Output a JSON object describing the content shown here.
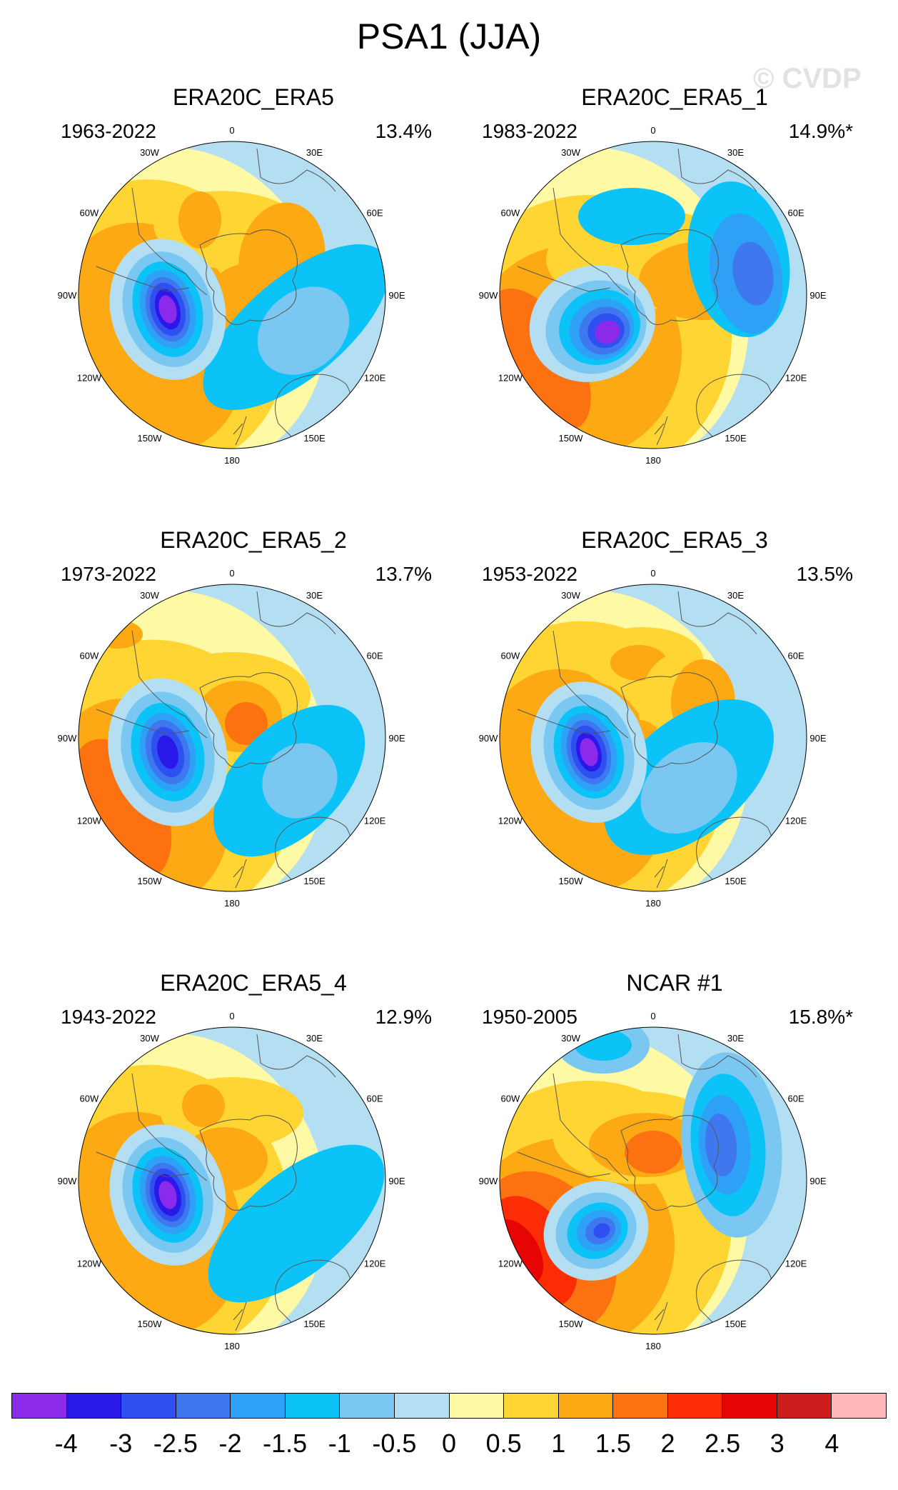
{
  "title": "PSA1 (JJA)",
  "watermark": "© CVDP",
  "lon_labels": [
    "0",
    "30E",
    "60E",
    "90E",
    "120E",
    "150E",
    "180",
    "150W",
    "120W",
    "90W",
    "60W",
    "30W"
  ],
  "colors": {
    "land_outline": "#555555",
    "circle_outline": "#000000"
  },
  "colorbar": {
    "colors": [
      "#8b2ae8",
      "#2a18e8",
      "#2e50f0",
      "#3f78ee",
      "#2ea1f6",
      "#0cc3f8",
      "#7ac8f2",
      "#b4def2",
      "#fef9a4",
      "#fed532",
      "#fda913",
      "#fc7210",
      "#fc2d05",
      "#e60404",
      "#cd1e1e",
      "#feb6b8"
    ],
    "labels": [
      "-4",
      "-3",
      "-2.5",
      "-2",
      "-1.5",
      "-1",
      "-0.5",
      "0",
      "0.5",
      "1",
      "1.5",
      "2",
      "2.5",
      "3",
      "4"
    ]
  },
  "panels": [
    {
      "title": "ERA20C_ERA5",
      "years": "1963-2022",
      "pct": "13.4%"
    },
    {
      "title": "ERA20C_ERA5_1",
      "years": "1983-2022",
      "pct": "14.9%*"
    },
    {
      "title": "ERA20C_ERA5_2",
      "years": "1973-2022",
      "pct": "13.7%"
    },
    {
      "title": "ERA20C_ERA5_3",
      "years": "1953-2022",
      "pct": "13.5%"
    },
    {
      "title": "ERA20C_ERA5_4",
      "years": "1943-2022",
      "pct": "12.9%"
    },
    {
      "title": "NCAR #1",
      "years": "1950-2005",
      "pct": "15.8%*"
    }
  ]
}
